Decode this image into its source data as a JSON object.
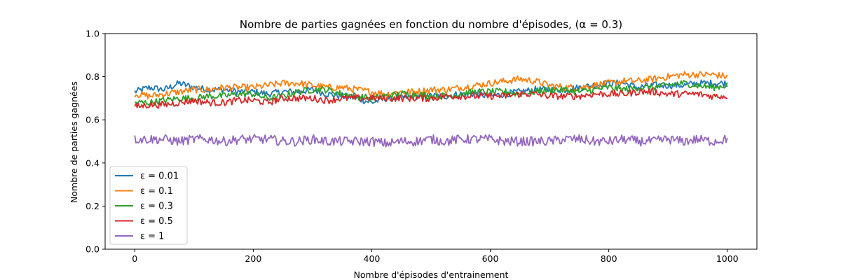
{
  "chart_data": {
    "type": "line",
    "title": "Nombre de parties gagnées en fonction du nombre d'épisodes, (α = 0.3)",
    "xlabel": "Nombre d'épisodes d'entrainement",
    "ylabel": "Nombre de parties gagnées",
    "xlim": [
      -50,
      1050
    ],
    "ylim": [
      0.0,
      1.0
    ],
    "xticks": [
      0,
      200,
      400,
      600,
      800,
      1000
    ],
    "xtick_labels": [
      "0",
      "200",
      "400",
      "600",
      "800",
      "1000"
    ],
    "yticks": [
      0.0,
      0.2,
      0.4,
      0.6,
      0.8,
      1.0
    ],
    "ytick_labels": [
      "0.0",
      "0.2",
      "0.4",
      "0.6",
      "0.8",
      "1.0"
    ],
    "grid": false,
    "legend_position": "lower-left",
    "x": [
      0,
      25,
      50,
      75,
      100,
      125,
      150,
      175,
      200,
      225,
      250,
      275,
      300,
      325,
      350,
      375,
      400,
      425,
      450,
      475,
      500,
      525,
      550,
      575,
      600,
      625,
      650,
      675,
      700,
      725,
      750,
      775,
      800,
      825,
      850,
      875,
      900,
      925,
      950,
      975,
      1000
    ],
    "series": [
      {
        "name": "ε = 0.01",
        "color": "#1f77b4",
        "values": [
          0.73,
          0.75,
          0.74,
          0.77,
          0.75,
          0.74,
          0.74,
          0.73,
          0.73,
          0.72,
          0.73,
          0.73,
          0.74,
          0.72,
          0.71,
          0.7,
          0.68,
          0.7,
          0.7,
          0.71,
          0.71,
          0.71,
          0.72,
          0.72,
          0.71,
          0.72,
          0.73,
          0.74,
          0.74,
          0.74,
          0.75,
          0.76,
          0.77,
          0.77,
          0.75,
          0.76,
          0.76,
          0.76,
          0.77,
          0.77,
          0.77
        ]
      },
      {
        "name": "ε = 0.1",
        "color": "#ff7f0e",
        "values": [
          0.72,
          0.71,
          0.72,
          0.73,
          0.74,
          0.74,
          0.75,
          0.75,
          0.75,
          0.76,
          0.77,
          0.77,
          0.76,
          0.75,
          0.75,
          0.74,
          0.73,
          0.72,
          0.73,
          0.73,
          0.74,
          0.74,
          0.75,
          0.76,
          0.77,
          0.78,
          0.79,
          0.78,
          0.76,
          0.75,
          0.75,
          0.76,
          0.77,
          0.78,
          0.78,
          0.79,
          0.8,
          0.81,
          0.81,
          0.81,
          0.8
        ]
      },
      {
        "name": "ε = 0.3",
        "color": "#2ca02c",
        "values": [
          0.68,
          0.68,
          0.69,
          0.7,
          0.7,
          0.71,
          0.71,
          0.72,
          0.72,
          0.7,
          0.71,
          0.73,
          0.74,
          0.74,
          0.72,
          0.71,
          0.7,
          0.71,
          0.72,
          0.72,
          0.71,
          0.71,
          0.72,
          0.73,
          0.73,
          0.73,
          0.72,
          0.73,
          0.74,
          0.74,
          0.73,
          0.74,
          0.75,
          0.74,
          0.75,
          0.75,
          0.76,
          0.77,
          0.76,
          0.75,
          0.76
        ]
      },
      {
        "name": "ε = 0.5",
        "color": "#d62728",
        "values": [
          0.66,
          0.67,
          0.67,
          0.68,
          0.69,
          0.68,
          0.68,
          0.69,
          0.69,
          0.68,
          0.7,
          0.7,
          0.7,
          0.69,
          0.7,
          0.7,
          0.7,
          0.7,
          0.7,
          0.7,
          0.7,
          0.71,
          0.71,
          0.71,
          0.71,
          0.71,
          0.72,
          0.72,
          0.71,
          0.71,
          0.71,
          0.72,
          0.72,
          0.72,
          0.73,
          0.73,
          0.72,
          0.72,
          0.72,
          0.71,
          0.71
        ]
      },
      {
        "name": "ε = 1",
        "color": "#9467bd",
        "values": [
          0.51,
          0.51,
          0.51,
          0.5,
          0.51,
          0.51,
          0.5,
          0.51,
          0.51,
          0.51,
          0.5,
          0.5,
          0.51,
          0.5,
          0.5,
          0.5,
          0.5,
          0.49,
          0.5,
          0.5,
          0.51,
          0.5,
          0.51,
          0.51,
          0.51,
          0.5,
          0.5,
          0.5,
          0.5,
          0.51,
          0.51,
          0.5,
          0.5,
          0.51,
          0.5,
          0.5,
          0.51,
          0.5,
          0.51,
          0.5,
          0.51
        ]
      }
    ]
  }
}
